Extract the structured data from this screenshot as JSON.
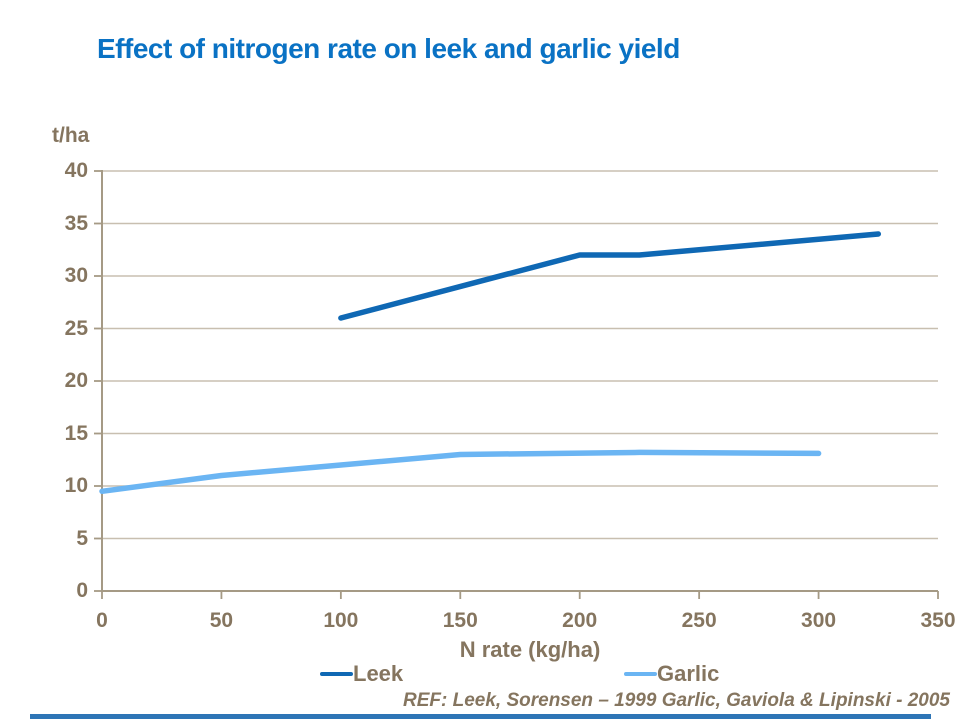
{
  "title": "Effect of nitrogen rate on leek and garlic yield",
  "colors": {
    "title": "#0A72C4",
    "axis_text": "#85755F",
    "axis_line": "#A59A85",
    "gridline": "#C8BFB0",
    "footer_bar": "#2E75B6"
  },
  "footer": {
    "reference": "REF: Leek, Sorensen – 1999 Garlic, Gaviola & Lipinski - 2005"
  },
  "chart_data": {
    "type": "line",
    "title": "Effect of nitrogen rate on leek and garlic yield",
    "xlabel": "N rate (kg/ha)",
    "ylabel": "t/ha",
    "xlim": [
      0,
      350
    ],
    "ylim": [
      0,
      40
    ],
    "x_ticks": [
      0,
      50,
      100,
      150,
      200,
      250,
      300,
      350
    ],
    "y_ticks": [
      0,
      5,
      10,
      15,
      20,
      25,
      30,
      35,
      40
    ],
    "grid": "horizontal-only",
    "legend_position": "bottom",
    "series": [
      {
        "name": "Leek",
        "color": "#0F68B4",
        "x": [
          100,
          200,
          225,
          325
        ],
        "y": [
          26,
          32,
          32,
          34
        ]
      },
      {
        "name": "Garlic",
        "color": "#6BB5F3",
        "x": [
          0,
          50,
          100,
          150,
          225,
          300
        ],
        "y": [
          9.5,
          11,
          12,
          13,
          13.2,
          13.1
        ]
      }
    ]
  }
}
